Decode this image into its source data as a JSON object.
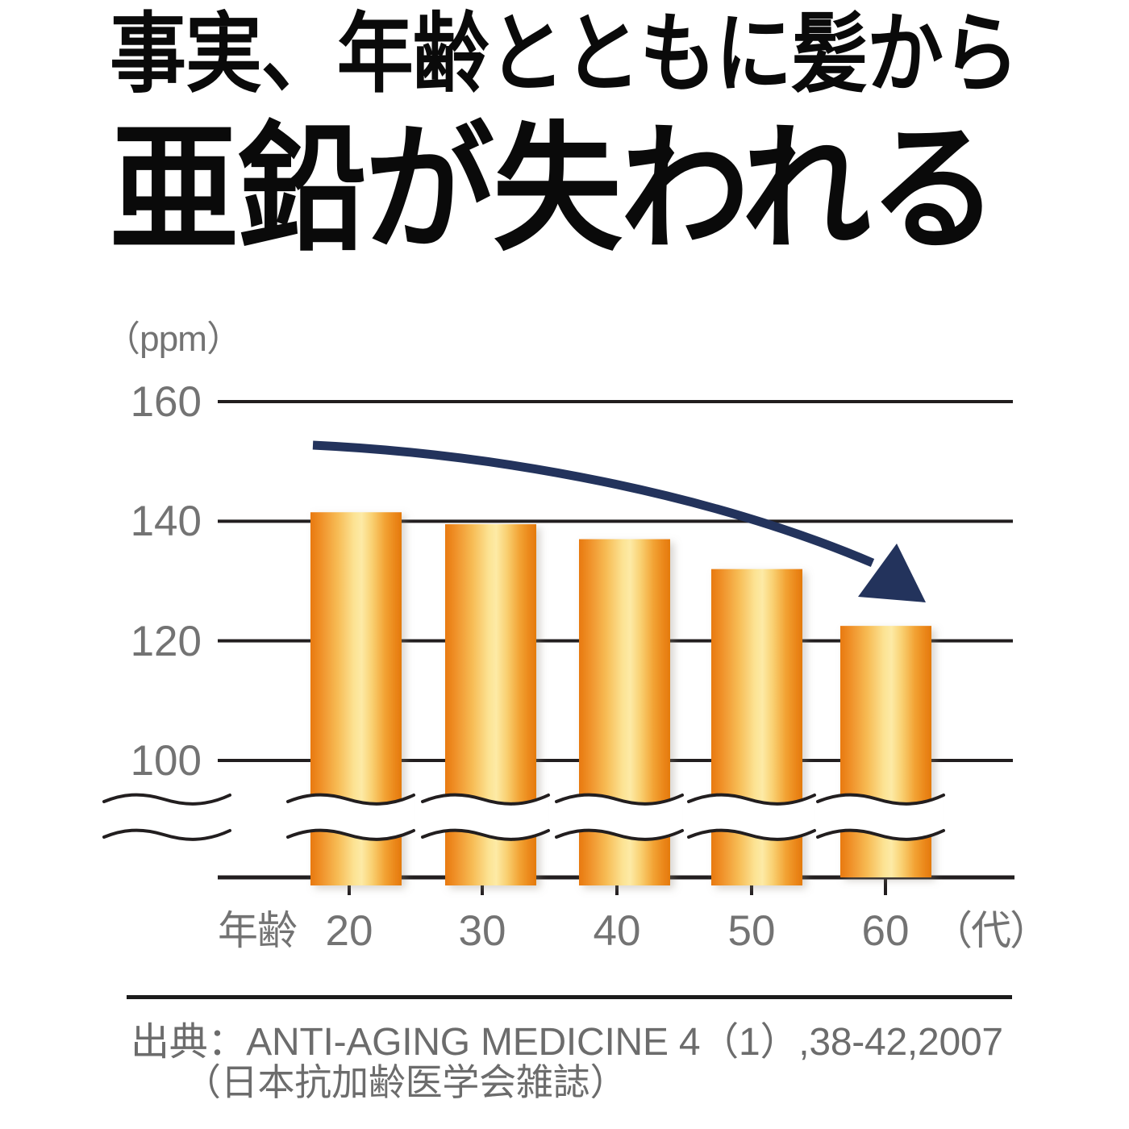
{
  "title": {
    "line1": "事実、年齢とともに髪から",
    "line2": "亜鉛が失われる"
  },
  "chart_data": {
    "type": "bar",
    "unit_label": "（ppm）",
    "x_axis_prefix": "年齢",
    "x_axis_suffix": "（代）",
    "categories": [
      "20",
      "30",
      "40",
      "50",
      "60"
    ],
    "values": [
      141.5,
      139.5,
      137,
      132,
      122.5
    ],
    "yticks": [
      160,
      140,
      120,
      100
    ],
    "ylim": [
      100,
      160
    ],
    "axis_break": true,
    "grid": "horizontal",
    "annotation": "downward-curved-arrow",
    "bar_gradient": [
      "#e8790f",
      "#fdeaa6",
      "#e47a0c"
    ]
  },
  "source": {
    "line1": "出典：ANTI-AGING MEDICINE 4（1）,38-42,2007",
    "line2": "（日本抗加齢医学会雑誌）"
  },
  "colors": {
    "title_text": "#0a0a0a",
    "muted_text": "#737373",
    "source_text": "#6c6c6c",
    "grid_line": "#221e1f",
    "arrow": "#23335c"
  }
}
